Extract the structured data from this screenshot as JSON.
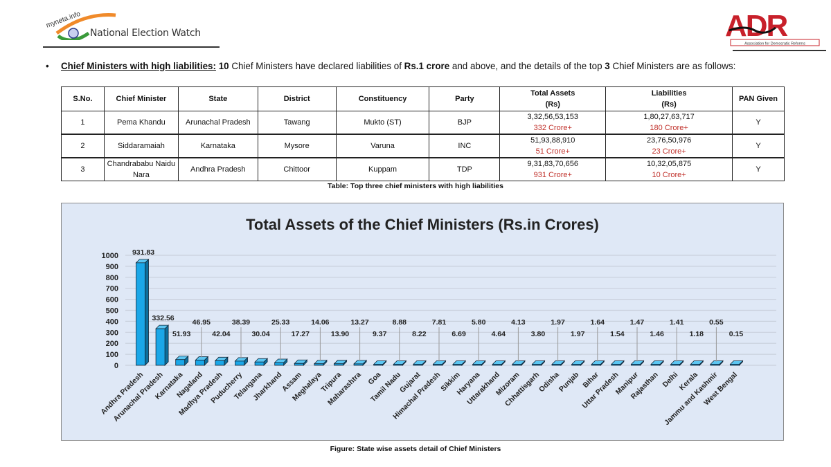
{
  "header": {
    "left_logo_text": "myneta.info",
    "left_logo_caption": "National Election Watch",
    "right_logo_text": "ADR",
    "right_logo_subtext": "Association for Democratic Reforms"
  },
  "intro": {
    "bullet": "•",
    "heading": "Chief Ministers with high liabilities:",
    "count": "10",
    "text1": " Chief Ministers have declared liabilities of ",
    "threshold": "Rs.1 crore",
    "text2": " and above, and the details of the top ",
    "top": "3",
    "text3": " Chief Ministers are as follows:"
  },
  "table": {
    "headers": [
      "S.No.",
      "Chief Minister",
      "State",
      "District",
      "Constituency",
      "Party",
      "Total Assets",
      "(Rs)",
      "Liabilities",
      "(Rs)",
      "PAN Given"
    ],
    "rows": [
      {
        "sno": "1",
        "name": "Pema Khandu",
        "state": "Arunachal Pradesh",
        "district": "Tawang",
        "constituency": "Mukto (ST)",
        "party": "BJP",
        "assets": "3,32,56,53,153",
        "assets_short": "332 Crore+",
        "liabilities": "1,80,27,63,717",
        "liabilities_short": "180 Crore+",
        "pan": "Y"
      },
      {
        "sno": "2",
        "name": "Siddaramaiah",
        "state": "Karnataka",
        "district": "Mysore",
        "constituency": "Varuna",
        "party": "INC",
        "assets": "51,93,88,910",
        "assets_short": "51 Crore+",
        "liabilities": "23,76,50,976",
        "liabilities_short": "23 Crore+",
        "pan": "Y"
      },
      {
        "sno": "3",
        "name": "Chandrababu Naidu Nara",
        "state": "Andhra Pradesh",
        "district": "Chittoor",
        "constituency": "Kuppam",
        "party": "TDP",
        "assets": "9,31,83,70,656",
        "assets_short": "931 Crore+",
        "liabilities": "10,32,05,875",
        "liabilities_short": "10 Crore+",
        "pan": "Y"
      }
    ],
    "caption": "Table: Top three chief ministers with high liabilities"
  },
  "chart_data": {
    "type": "bar",
    "title": "Total Assets of the Chief Ministers (Rs.in Crores)",
    "xlabel": "",
    "ylabel": "",
    "ylim": [
      0,
      1000
    ],
    "yticks": [
      0,
      100,
      200,
      300,
      400,
      500,
      600,
      700,
      800,
      900,
      1000
    ],
    "grid": true,
    "bar_color": "#1aa7e8",
    "categories": [
      "Andhra Pradesh",
      "Arunachal Pradesh",
      "Karnataka",
      "Nagaland",
      "Madhya Pradesh",
      "Puducherry",
      "Telangana",
      "Jharkhand",
      "Assam",
      "Meghalaya",
      "Tripura",
      "Maharashtra",
      "Goa",
      "Tamil Nadu",
      "Gujarat",
      "Himachal Pradesh",
      "Sikkim",
      "Haryana",
      "Uttarakhand",
      "Mizoram",
      "Chhattisgarh",
      "Odisha",
      "Punjab",
      "Bihar",
      "Uttar Pradesh",
      "Manipur",
      "Rajasthan",
      "Delhi",
      "Kerala",
      "Jammu and Kashmir",
      "West Bengal"
    ],
    "values": [
      931.83,
      332.56,
      51.93,
      46.95,
      42.04,
      38.39,
      30.04,
      25.33,
      17.27,
      14.06,
      13.9,
      13.27,
      9.37,
      8.88,
      8.22,
      7.81,
      6.69,
      5.8,
      4.64,
      4.13,
      3.8,
      1.97,
      1.97,
      1.64,
      1.54,
      1.47,
      1.46,
      1.41,
      1.18,
      0.55,
      0.15
    ],
    "labels": [
      "931.83",
      "332.56",
      "51.93",
      "46.95",
      "42.04",
      "38.39",
      "30.04",
      "25.33",
      "17.27",
      "14.06",
      "13.90",
      "13.27",
      "9.37",
      "8.88",
      "8.22",
      "7.81",
      "6.69",
      "5.80",
      "4.64",
      "4.13",
      "3.80",
      "1.97",
      "1.97",
      "1.64",
      "1.54",
      "1.47",
      "1.46",
      "1.41",
      "1.18",
      "0.55",
      "0.15"
    ],
    "caption": "Figure: State wise assets detail of Chief Ministers"
  }
}
